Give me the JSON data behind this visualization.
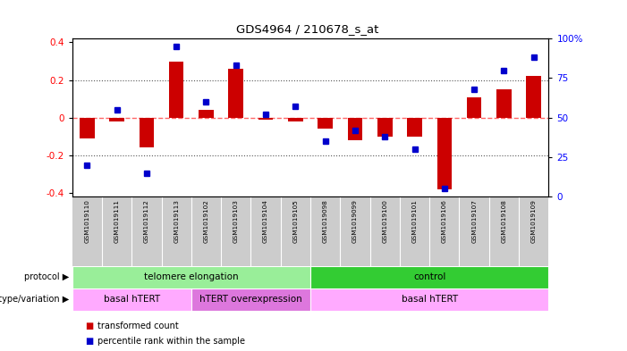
{
  "title": "GDS4964 / 210678_s_at",
  "samples": [
    "GSM1019110",
    "GSM1019111",
    "GSM1019112",
    "GSM1019113",
    "GSM1019102",
    "GSM1019103",
    "GSM1019104",
    "GSM1019105",
    "GSM1019098",
    "GSM1019099",
    "GSM1019100",
    "GSM1019101",
    "GSM1019106",
    "GSM1019107",
    "GSM1019108",
    "GSM1019109"
  ],
  "bar_values": [
    -0.11,
    -0.02,
    -0.16,
    0.3,
    0.04,
    0.26,
    -0.01,
    -0.02,
    -0.06,
    -0.12,
    -0.1,
    -0.1,
    -0.38,
    0.11,
    0.15,
    0.22
  ],
  "dot_values": [
    20,
    55,
    15,
    95,
    60,
    83,
    52,
    57,
    35,
    42,
    38,
    30,
    5,
    68,
    80,
    88
  ],
  "ylim_left": [
    -0.42,
    0.42
  ],
  "ylim_right": [
    0,
    100
  ],
  "bar_color": "#cc0000",
  "dot_color": "#0000cc",
  "zero_line_color": "#ff6666",
  "dotted_line_color": "#555555",
  "protocol_groups": [
    {
      "label": "telomere elongation",
      "start": 0,
      "end": 8,
      "color": "#99ee99"
    },
    {
      "label": "control",
      "start": 8,
      "end": 16,
      "color": "#33cc33"
    }
  ],
  "genotype_groups": [
    {
      "label": "basal hTERT",
      "start": 0,
      "end": 4,
      "color": "#ffaaff"
    },
    {
      "label": "hTERT overexpression",
      "start": 4,
      "end": 8,
      "color": "#dd77dd"
    },
    {
      "label": "basal hTERT",
      "start": 8,
      "end": 16,
      "color": "#ffaaff"
    }
  ],
  "legend_items": [
    {
      "label": "transformed count",
      "color": "#cc0000"
    },
    {
      "label": "percentile rank within the sample",
      "color": "#0000cc"
    }
  ]
}
